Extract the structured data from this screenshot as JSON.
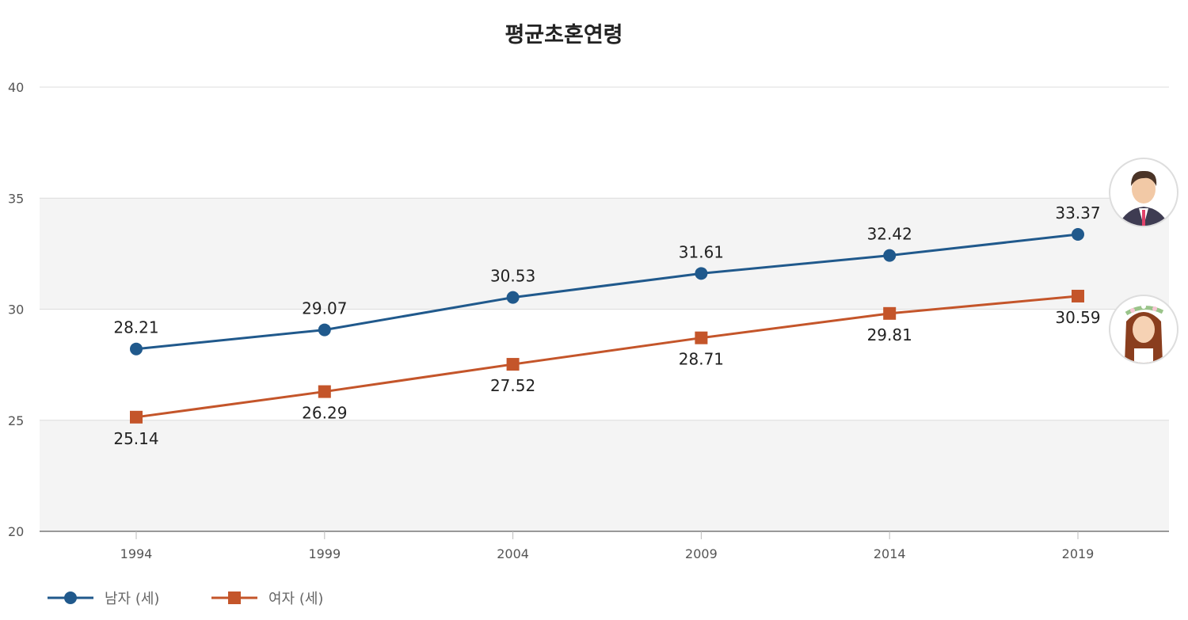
{
  "chart_data": {
    "type": "line",
    "title": "평균초혼연령",
    "categories": [
      "1994",
      "1999",
      "2004",
      "2009",
      "2014",
      "2019"
    ],
    "ylim": [
      20,
      40
    ],
    "yticks": [
      "20",
      "25",
      "30",
      "35",
      "40"
    ],
    "grid": true,
    "legend_position": "bottom-left",
    "series": [
      {
        "name": "남자 (세)",
        "values": [
          28.21,
          29.07,
          30.53,
          31.61,
          32.42,
          33.37
        ],
        "color": "#20598c",
        "marker": "circle",
        "icon": "groom-avatar-icon"
      },
      {
        "name": "여자 (세)",
        "values": [
          25.14,
          26.29,
          27.52,
          28.71,
          29.81,
          30.59
        ],
        "color": "#c4552a",
        "marker": "square",
        "icon": "bride-avatar-icon"
      }
    ]
  }
}
